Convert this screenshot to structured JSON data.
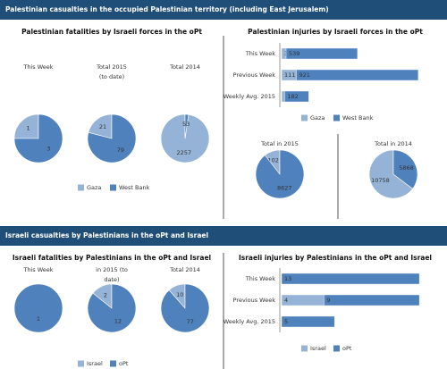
{
  "sections": [
    {
      "title": "Palestinian casualties in the occupied Palestinian territory (including East Jerusalem)"
    },
    {
      "title": "Israeli casualties by Palestinians in the oPt and Israel"
    }
  ],
  "chart_data": [
    {
      "type": "pie",
      "title": "Palestinian fatalities by Israeli forces in the oPt",
      "categories": [
        "Gaza",
        "West Bank"
      ],
      "colors": [
        "#95b3d7",
        "#4f81bd"
      ],
      "legend": "bottom",
      "pies": [
        {
          "title": [
            "This Week"
          ],
          "values": [
            1,
            3
          ]
        },
        {
          "title": [
            "Total 2015",
            "(to date)"
          ],
          "values": [
            21,
            79
          ]
        },
        {
          "title": [
            "Total 2014"
          ],
          "values": [
            2257,
            53
          ]
        }
      ]
    },
    {
      "type": "bar",
      "orientation": "horizontal",
      "stacked": true,
      "title": "Palestinian injuries by Israeli forces in the oPt",
      "categories": [
        "This Week",
        "Previous Week",
        "Weekly Avg. 2015"
      ],
      "series": [
        {
          "name": "Gaza",
          "color": "#95b3d7",
          "values": [
            34,
            111,
            23
          ]
        },
        {
          "name": "West Bank",
          "color": "#4f81bd",
          "values": [
            539,
            921,
            182
          ]
        }
      ],
      "xlim": [
        0,
        1080
      ],
      "legend": "bottom",
      "pies": [
        {
          "title": [
            "Total in 2015"
          ],
          "values": [
            1021,
            8627
          ]
        },
        {
          "title": [
            "Total in 2014"
          ],
          "values": [
            10758,
            5868
          ]
        }
      ]
    },
    {
      "type": "pie",
      "title": "Israeli fatalities by Palestinians in the oPt and Israel",
      "categories": [
        "Israel",
        "oPt"
      ],
      "colors": [
        "#95b3d7",
        "#4f81bd"
      ],
      "legend": "bottom",
      "pies": [
        {
          "title": [
            "This Week"
          ],
          "values": [
            0,
            1
          ]
        },
        {
          "title": [
            "in 2015 (to",
            "date)"
          ],
          "values": [
            2,
            12
          ]
        },
        {
          "title": [
            "Total 2014"
          ],
          "values": [
            10,
            77
          ]
        }
      ]
    },
    {
      "type": "bar",
      "orientation": "horizontal",
      "stacked": true,
      "title": "Israeli injuries by Palestinians in the oPt and Israel",
      "categories": [
        "This Week",
        "Previous Week",
        "Weekly Avg. 2015"
      ],
      "series": [
        {
          "name": "Israel",
          "color": "#95b3d7",
          "values": [
            0,
            4,
            0
          ]
        },
        {
          "name": "oPt",
          "color": "#4f81bd",
          "values": [
            13,
            9,
            5
          ]
        }
      ],
      "xlim": [
        0,
        13.5
      ],
      "legend": "bottom"
    }
  ]
}
